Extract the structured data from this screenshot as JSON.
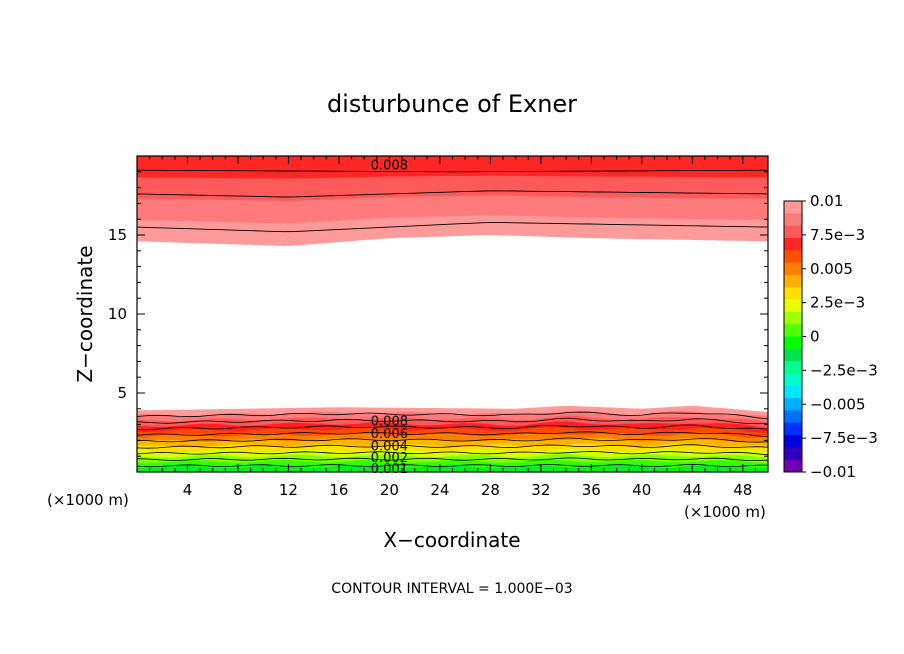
{
  "chart_data": {
    "type": "contour",
    "title": "disturbunce of Exner",
    "xlabel": "X−coordinate",
    "ylabel": "Z−coordinate",
    "x_unit_left": "(×1000 m)",
    "x_unit_right": "(×1000 m)",
    "xlim": [
      0,
      50
    ],
    "ylim": [
      0,
      20
    ],
    "x_ticks": [
      4,
      8,
      12,
      16,
      20,
      24,
      28,
      32,
      36,
      40,
      44,
      48
    ],
    "y_ticks": [
      5,
      10,
      15
    ],
    "contour_interval_text": "CONTOUR INTERVAL = 1.000E−03",
    "colorbar": {
      "range": [
        -0.01,
        0.01
      ],
      "tick_labels": [
        "0.01",
        "7.5e−3",
        "0.005",
        "2.5e−3",
        "0",
        "−2.5e−3",
        "−0.005",
        "−7.5e−3",
        "−0.01"
      ],
      "colors": [
        "#ff9a9a",
        "#ff7b7b",
        "#ff5a5a",
        "#ff2626",
        "#ff5000",
        "#ff8000",
        "#ffb000",
        "#ffe000",
        "#e8ff00",
        "#a0ff00",
        "#50ff00",
        "#00ff00",
        "#00e050",
        "#00ff90",
        "#00ffc8",
        "#00e8ff",
        "#00b0ff",
        "#0070ff",
        "#0030ff",
        "#0000e0",
        "#3000c0",
        "#7000b0"
      ]
    },
    "upper_band": {
      "z_base_at_x": [
        [
          0,
          14.6
        ],
        [
          8,
          14.4
        ],
        [
          12,
          14.3
        ],
        [
          20,
          14.8
        ],
        [
          28,
          15.0
        ],
        [
          36,
          14.8
        ],
        [
          50,
          14.6
        ]
      ],
      "contours": [
        {
          "level": 0.009,
          "z_at_x": [
            [
              0,
              15.5
            ],
            [
              12,
              15.2
            ],
            [
              28,
              15.8
            ],
            [
              50,
              15.5
            ]
          ]
        },
        {
          "level": 0.008,
          "z_at_x": [
            [
              0,
              17.6
            ],
            [
              12,
              17.4
            ],
            [
              28,
              17.8
            ],
            [
              50,
              17.6
            ]
          ]
        },
        {
          "level": 0.007,
          "z_at_x": [
            [
              0,
              19.1
            ],
            [
              25,
              19.0
            ],
            [
              50,
              19.1
            ]
          ]
        }
      ],
      "labels": [
        {
          "text": "0.008",
          "x": 20,
          "z": 19.4
        }
      ]
    },
    "lower_band": {
      "z_top_at_x": [
        [
          0,
          3.9
        ],
        [
          16,
          4.1
        ],
        [
          30,
          4.0
        ],
        [
          34,
          4.2
        ],
        [
          40,
          4.0
        ],
        [
          44,
          4.2
        ],
        [
          50,
          3.8
        ]
      ],
      "levels": [
        0.009,
        0.008,
        0.007,
        0.006,
        0.005,
        0.004,
        0.003,
        0.002,
        0.001
      ],
      "labels": [
        {
          "text": "0.008",
          "x": 20,
          "z": 3.2
        },
        {
          "text": "0.006",
          "x": 20,
          "z": 2.4
        },
        {
          "text": "0.004",
          "x": 20,
          "z": 1.6
        },
        {
          "text": "0.002",
          "x": 20,
          "z": 0.9
        },
        {
          "text": "0.001",
          "x": 20,
          "z": 0.2
        }
      ]
    }
  }
}
